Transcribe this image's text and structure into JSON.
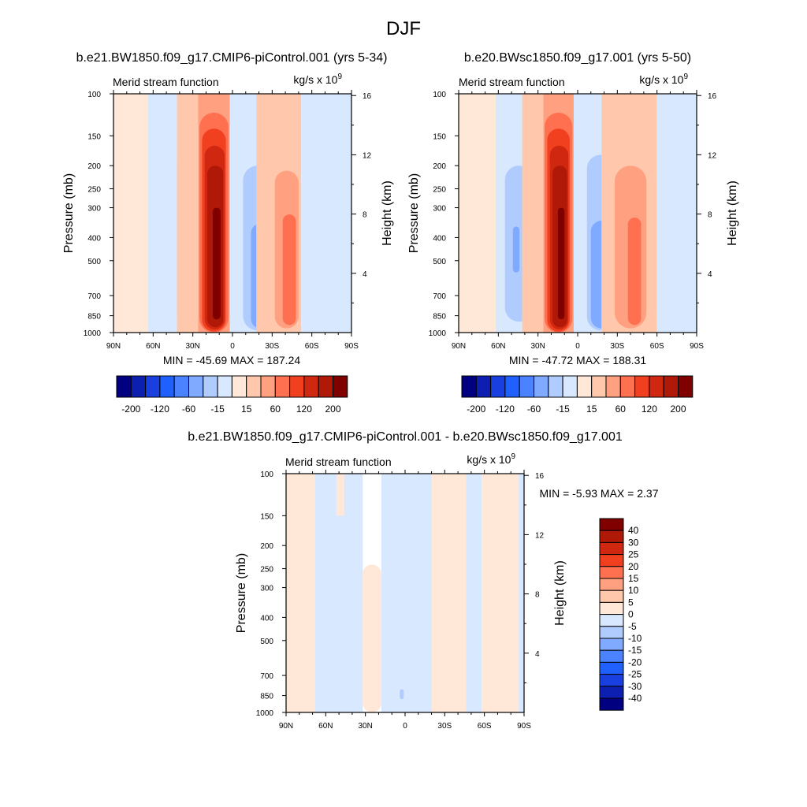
{
  "figure_title": "DJF",
  "panels": [
    {
      "id": "p1",
      "title": "b.e21.BW1850.f09_g17.CMIP6-piControl.001 (yrs 5-34)",
      "left_string": "Merid stream function",
      "right_string": "kg/s x 10",
      "right_superscript": "9",
      "stats": "MIN = -45.69  MAX = 187.24"
    },
    {
      "id": "p2",
      "title": "b.e20.BWsc1850.f09_g17.001 (yrs 5-50)",
      "left_string": "Merid stream function",
      "right_string": "kg/s x 10",
      "right_superscript": "9",
      "stats": "MIN = -47.72  MAX = 188.31"
    },
    {
      "id": "p3",
      "title": "b.e21.BW1850.f09_g17.CMIP6-piControl.001 - b.e20.BWsc1850.f09_g17.001",
      "left_string": "Merid stream function",
      "right_string": "kg/s x 10",
      "right_superscript": "9",
      "stats": "MIN =  -5.93  MAX =   2.37"
    }
  ],
  "chart_data": [
    {
      "type": "heatmap",
      "panel": "p1",
      "xlabel": "",
      "ylabel": "Pressure (mb)",
      "ylabel_right": "Height (km)",
      "x_ticks": [
        "90N",
        "60N",
        "30N",
        "0",
        "30S",
        "60S",
        "90S"
      ],
      "x_tick_values": [
        90,
        60,
        30,
        0,
        -30,
        -60,
        -90
      ],
      "xlim": [
        90,
        -90
      ],
      "y_ticks": [
        100,
        150,
        200,
        250,
        300,
        400,
        500,
        700,
        850,
        1000
      ],
      "ylim": [
        1000,
        100
      ],
      "y_scale": "log",
      "height_ticks_km": [
        4,
        8,
        12,
        16
      ],
      "min": -45.69,
      "max": 187.24,
      "cells": [
        {
          "lat1": 90,
          "lat2": 64,
          "p_top": 100,
          "p_bot": 1000,
          "value": 3
        },
        {
          "lat1": 64,
          "lat2": 42,
          "p_top": 100,
          "p_bot": 1000,
          "value": -8
        },
        {
          "lat1": 42,
          "lat2": 28,
          "p_top": 180,
          "p_bot": 900,
          "value": -18
        },
        {
          "lat1": 38,
          "lat2": 31,
          "p_top": 300,
          "p_bot": 760,
          "value": -32
        },
        {
          "lat1": 42,
          "lat2": 26,
          "p_top": 100,
          "p_bot": 1000,
          "value": 5
        },
        {
          "lat1": 26,
          "lat2": 2,
          "p_top": 100,
          "p_bot": 1000,
          "value": 20
        },
        {
          "lat1": 25,
          "lat2": 3,
          "p_top": 120,
          "p_bot": 1000,
          "value": 45
        },
        {
          "lat1": 23,
          "lat2": 5,
          "p_top": 140,
          "p_bot": 990,
          "value": 75
        },
        {
          "lat1": 21,
          "lat2": 6,
          "p_top": 165,
          "p_bot": 970,
          "value": 105
        },
        {
          "lat1": 19,
          "lat2": 7,
          "p_top": 200,
          "p_bot": 950,
          "value": 130
        },
        {
          "lat1": 17,
          "lat2": 8,
          "p_top": 240,
          "p_bot": 920,
          "value": 155
        },
        {
          "lat1": 15,
          "lat2": 9,
          "p_top": 300,
          "p_bot": 880,
          "value": 180
        },
        {
          "lat1": 2,
          "lat2": -18,
          "p_top": 100,
          "p_bot": 1000,
          "value": -8
        },
        {
          "lat1": -8,
          "lat2": -30,
          "p_top": 200,
          "p_bot": 980,
          "value": -18
        },
        {
          "lat1": -14,
          "lat2": -28,
          "p_top": 350,
          "p_bot": 960,
          "value": -32
        },
        {
          "lat1": -18,
          "lat2": -52,
          "p_top": 100,
          "p_bot": 1000,
          "value": 5
        },
        {
          "lat1": -32,
          "lat2": -50,
          "p_top": 210,
          "p_bot": 960,
          "value": 22
        },
        {
          "lat1": -38,
          "lat2": -48,
          "p_top": 320,
          "p_bot": 930,
          "value": 45
        },
        {
          "lat1": -52,
          "lat2": -90,
          "p_top": 100,
          "p_bot": 1000,
          "value": -8
        }
      ]
    },
    {
      "type": "heatmap",
      "panel": "p2",
      "xlabel": "",
      "ylabel": "Pressure (mb)",
      "ylabel_right": "Height (km)",
      "x_ticks": [
        "90N",
        "60N",
        "30N",
        "0",
        "30S",
        "60S",
        "90S"
      ],
      "x_tick_values": [
        90,
        60,
        30,
        0,
        -30,
        -60,
        -90
      ],
      "xlim": [
        90,
        -90
      ],
      "y_ticks": [
        100,
        150,
        200,
        250,
        300,
        400,
        500,
        700,
        850,
        1000
      ],
      "ylim": [
        1000,
        100
      ],
      "y_scale": "log",
      "height_ticks_km": [
        4,
        8,
        12,
        16
      ],
      "min": -47.72,
      "max": 188.31,
      "cells": [
        {
          "lat1": 90,
          "lat2": 62,
          "p_top": 100,
          "p_bot": 1000,
          "value": 3
        },
        {
          "lat1": 62,
          "lat2": 42,
          "p_top": 100,
          "p_bot": 1000,
          "value": -8
        },
        {
          "lat1": 55,
          "lat2": 34,
          "p_top": 200,
          "p_bot": 900,
          "value": -18
        },
        {
          "lat1": 49,
          "lat2": 44,
          "p_top": 360,
          "p_bot": 560,
          "value": -32
        },
        {
          "lat1": 42,
          "lat2": 26,
          "p_top": 100,
          "p_bot": 1000,
          "value": 5
        },
        {
          "lat1": 26,
          "lat2": 3,
          "p_top": 100,
          "p_bot": 1000,
          "value": 20
        },
        {
          "lat1": 25,
          "lat2": 4,
          "p_top": 120,
          "p_bot": 1000,
          "value": 45
        },
        {
          "lat1": 23,
          "lat2": 6,
          "p_top": 140,
          "p_bot": 990,
          "value": 75
        },
        {
          "lat1": 21,
          "lat2": 7,
          "p_top": 165,
          "p_bot": 970,
          "value": 105
        },
        {
          "lat1": 19,
          "lat2": 8,
          "p_top": 200,
          "p_bot": 950,
          "value": 130
        },
        {
          "lat1": 17,
          "lat2": 9,
          "p_top": 240,
          "p_bot": 920,
          "value": 155
        },
        {
          "lat1": 15,
          "lat2": 10,
          "p_top": 300,
          "p_bot": 880,
          "value": 180
        },
        {
          "lat1": 3,
          "lat2": -18,
          "p_top": 100,
          "p_bot": 1000,
          "value": -8
        },
        {
          "lat1": -7,
          "lat2": -28,
          "p_top": 180,
          "p_bot": 980,
          "value": -18
        },
        {
          "lat1": -10,
          "lat2": -26,
          "p_top": 340,
          "p_bot": 960,
          "value": -32
        },
        {
          "lat1": -18,
          "lat2": -60,
          "p_top": 100,
          "p_bot": 1000,
          "value": 5
        },
        {
          "lat1": -28,
          "lat2": -52,
          "p_top": 200,
          "p_bot": 960,
          "value": 22
        },
        {
          "lat1": -38,
          "lat2": -48,
          "p_top": 330,
          "p_bot": 930,
          "value": 45
        },
        {
          "lat1": -60,
          "lat2": -90,
          "p_top": 100,
          "p_bot": 1000,
          "value": -8
        }
      ]
    },
    {
      "type": "heatmap",
      "panel": "p3",
      "xlabel": "",
      "ylabel": "Pressure (mb)",
      "ylabel_right": "Height (km)",
      "x_ticks": [
        "90N",
        "60N",
        "30N",
        "0",
        "30S",
        "60S",
        "90S"
      ],
      "x_tick_values": [
        90,
        60,
        30,
        0,
        -30,
        -60,
        -90
      ],
      "xlim": [
        90,
        -90
      ],
      "y_ticks": [
        100,
        150,
        200,
        250,
        300,
        400,
        500,
        700,
        850,
        1000
      ],
      "ylim": [
        1000,
        100
      ],
      "y_scale": "log",
      "height_ticks_km": [
        4,
        8,
        12,
        16
      ],
      "min": -5.93,
      "max": 2.37,
      "cells": [
        {
          "lat1": 90,
          "lat2": 68,
          "p_top": 100,
          "p_bot": 1000,
          "value": 2
        },
        {
          "lat1": 68,
          "lat2": 32,
          "p_top": 100,
          "p_bot": 1000,
          "value": -3
        },
        {
          "lat1": 52,
          "lat2": 46,
          "p_top": 100,
          "p_bot": 150,
          "value": 2
        },
        {
          "lat1": 32,
          "lat2": 18,
          "p_top": 240,
          "p_bot": 1000,
          "value": 2
        },
        {
          "lat1": 18,
          "lat2": -20,
          "p_top": 100,
          "p_bot": 1000,
          "value": -3
        },
        {
          "lat1": 4,
          "lat2": 1,
          "p_top": 800,
          "p_bot": 880,
          "value": -7
        },
        {
          "lat1": -20,
          "lat2": -46,
          "p_top": 100,
          "p_bot": 1000,
          "value": 2
        },
        {
          "lat1": -46,
          "lat2": -58,
          "p_top": 100,
          "p_bot": 1000,
          "value": -3
        },
        {
          "lat1": -58,
          "lat2": -86,
          "p_top": 100,
          "p_bot": 1000,
          "value": 2
        },
        {
          "lat1": -86,
          "lat2": -90,
          "p_top": 100,
          "p_bot": 1000,
          "value": -3
        }
      ]
    }
  ],
  "colorbars": [
    {
      "panel": "p1",
      "orientation": "horizontal",
      "levels": [
        -200,
        -120,
        -60,
        -30,
        -15,
        -5,
        5,
        15,
        30,
        60,
        120,
        200
      ],
      "labels": [
        "-200",
        "-120",
        "-60",
        "-15",
        "15",
        "60",
        "120",
        "200"
      ],
      "label_after_box": [
        1,
        3,
        5,
        7,
        9,
        11,
        13,
        15
      ],
      "colors": [
        "#000080",
        "#0d1fb0",
        "#1a3fe0",
        "#2060ff",
        "#4a82ff",
        "#80aaff",
        "#b0ccff",
        "#d8e8ff",
        "#ffe8d8",
        "#ffc8ac",
        "#ffa080",
        "#ff7050",
        "#f04020",
        "#d02810",
        "#b01808",
        "#800000"
      ]
    },
    {
      "panel": "p2",
      "orientation": "horizontal",
      "levels": [
        -200,
        -120,
        -60,
        -30,
        -15,
        -5,
        5,
        15,
        30,
        60,
        120,
        200
      ],
      "labels": [
        "-200",
        "-120",
        "-60",
        "-15",
        "15",
        "60",
        "120",
        "200"
      ],
      "label_after_box": [
        1,
        3,
        5,
        7,
        9,
        11,
        13,
        15
      ],
      "colors": [
        "#000080",
        "#0d1fb0",
        "#1a3fe0",
        "#2060ff",
        "#4a82ff",
        "#80aaff",
        "#b0ccff",
        "#d8e8ff",
        "#ffe8d8",
        "#ffc8ac",
        "#ffa080",
        "#ff7050",
        "#f04020",
        "#d02810",
        "#b01808",
        "#800000"
      ]
    },
    {
      "panel": "p3",
      "orientation": "vertical",
      "labels": [
        "40",
        "30",
        "25",
        "20",
        "15",
        "10",
        "5",
        "0",
        "-5",
        "-10",
        "-15",
        "-20",
        "-25",
        "-30",
        "-40"
      ],
      "colors": [
        "#800000",
        "#b01808",
        "#d02810",
        "#f04020",
        "#ff7050",
        "#ffa080",
        "#ffc8ac",
        "#ffe8d8",
        "#d8e8ff",
        "#b0ccff",
        "#80aaff",
        "#4a82ff",
        "#2060ff",
        "#1a3fe0",
        "#0d1fb0",
        "#000080"
      ]
    }
  ]
}
